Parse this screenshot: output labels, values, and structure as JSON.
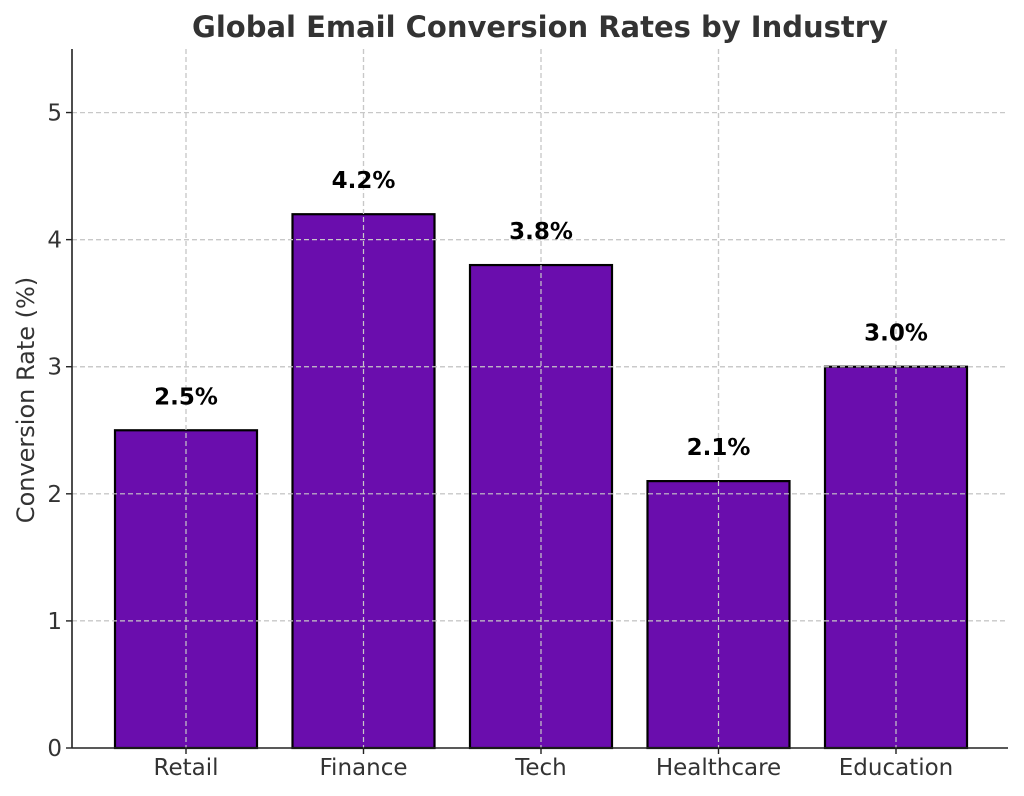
{
  "chart_data": {
    "type": "bar",
    "title": "Global Email Conversion Rates by Industry",
    "xlabel": "",
    "ylabel": "Conversion Rate (%)",
    "categories": [
      "Retail",
      "Finance",
      "Tech",
      "Healthcare",
      "Education"
    ],
    "values": [
      2.5,
      4.2,
      3.8,
      2.1,
      3.0
    ],
    "data_labels": [
      "2.5%",
      "4.2%",
      "3.8%",
      "2.1%",
      "3.0%"
    ],
    "ylim": [
      0,
      5.5
    ],
    "yticks": [
      0,
      1,
      2,
      3,
      4,
      5
    ],
    "grid": true,
    "bar_color": "#6a0dad",
    "bar_edge_color": "#000000"
  }
}
